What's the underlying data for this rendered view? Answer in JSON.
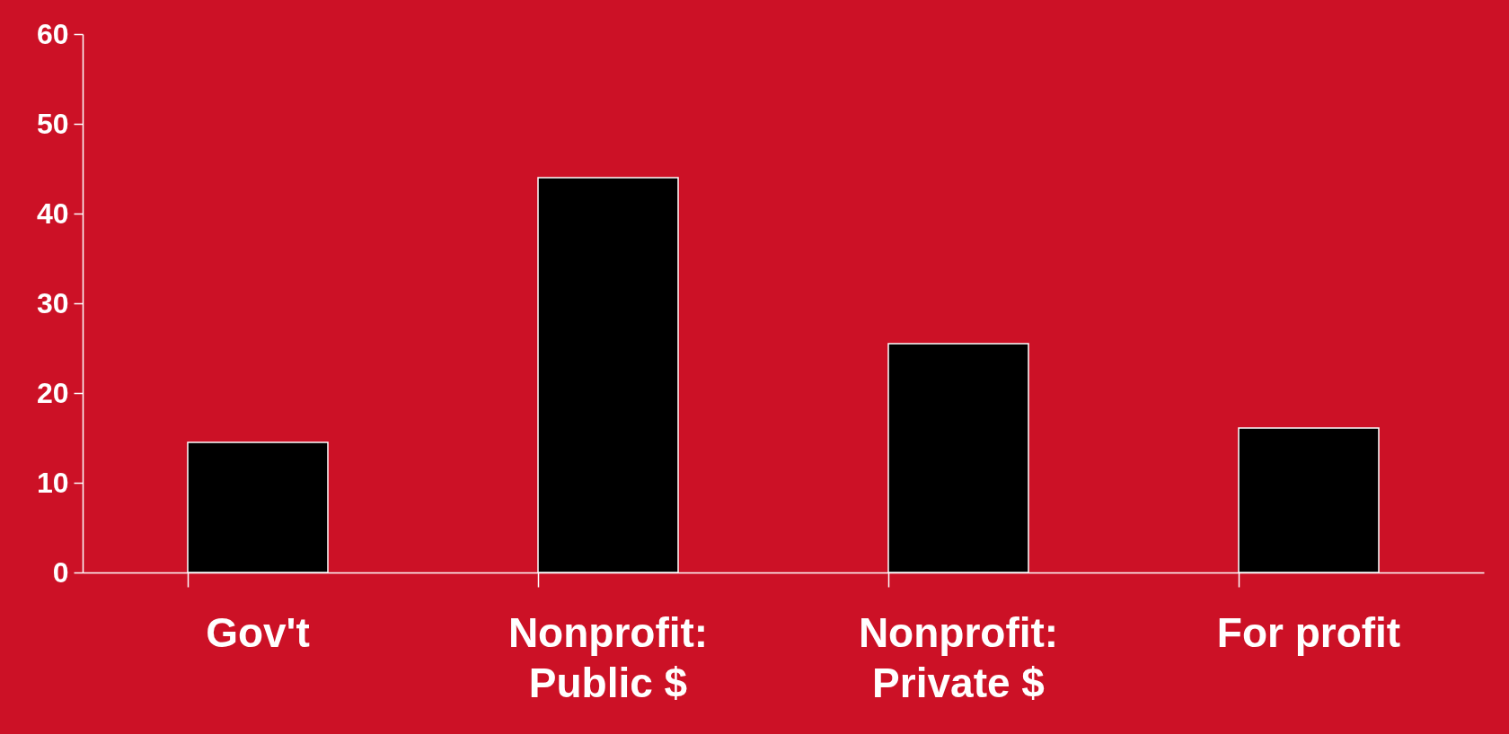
{
  "chart_data": {
    "type": "bar",
    "categories": [
      "Gov't",
      "Nonprofit:\nPublic $",
      "Nonprofit:\nPrivate $",
      "For profit"
    ],
    "values": [
      14.5,
      44,
      25.5,
      16.1
    ],
    "color": "#000000",
    "ylim": [
      0,
      60
    ],
    "yticks": [
      0,
      10,
      20,
      30,
      40,
      50,
      60
    ],
    "grid": false
  }
}
